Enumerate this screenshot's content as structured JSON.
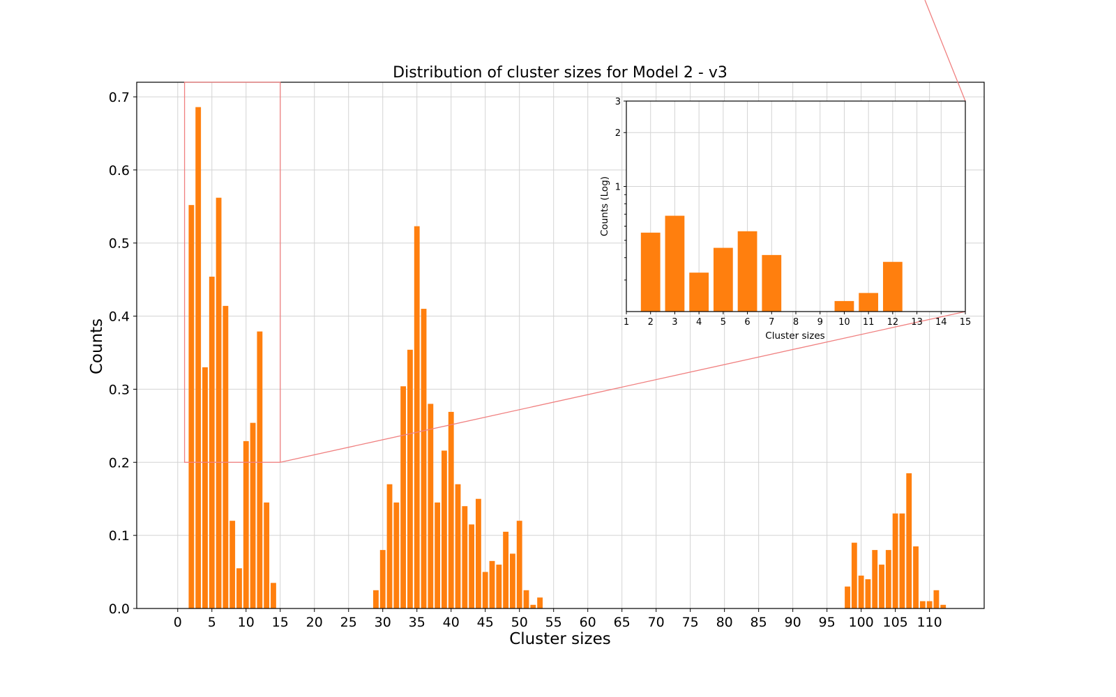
{
  "chart_data": [
    {
      "type": "bar",
      "title": "Distribution of cluster sizes for Model 2 - v3",
      "xlabel": "Cluster sizes",
      "ylabel": "Counts",
      "xlim": [
        -6,
        118
      ],
      "ylim": [
        0,
        0.72
      ],
      "xticks": [
        0,
        5,
        10,
        15,
        20,
        25,
        30,
        35,
        40,
        45,
        50,
        55,
        60,
        65,
        70,
        75,
        80,
        85,
        90,
        95,
        100,
        105,
        110
      ],
      "yticks": [
        0.0,
        0.1,
        0.2,
        0.3,
        0.4,
        0.5,
        0.6,
        0.7
      ],
      "grid": true,
      "color": "#ff7f0e",
      "zoom_box": {
        "x": [
          1,
          15
        ],
        "y": [
          0.2,
          0.72
        ]
      },
      "x": [
        2,
        3,
        4,
        5,
        6,
        7,
        8,
        9,
        10,
        11,
        12,
        13,
        14,
        29,
        30,
        31,
        32,
        33,
        34,
        35,
        36,
        37,
        38,
        39,
        40,
        41,
        42,
        43,
        44,
        45,
        46,
        47,
        48,
        49,
        50,
        51,
        52,
        53,
        98,
        99,
        100,
        101,
        102,
        103,
        104,
        105,
        106,
        107,
        108,
        109,
        110,
        111,
        112
      ],
      "values": [
        0.552,
        0.686,
        0.33,
        0.454,
        0.562,
        0.414,
        0.12,
        0.055,
        0.229,
        0.254,
        0.379,
        0.145,
        0.035,
        0.025,
        0.08,
        0.17,
        0.145,
        0.304,
        0.354,
        0.523,
        0.41,
        0.28,
        0.145,
        0.216,
        0.269,
        0.17,
        0.14,
        0.115,
        0.15,
        0.05,
        0.065,
        0.06,
        0.105,
        0.075,
        0.12,
        0.025,
        0.005,
        0.015,
        0.03,
        0.09,
        0.045,
        0.04,
        0.08,
        0.06,
        0.08,
        0.13,
        0.13,
        0.185,
        0.085,
        0.01,
        0.01,
        0.025,
        0.005
      ]
    },
    {
      "type": "bar",
      "title": "",
      "xlabel": "Cluster sizes",
      "ylabel": "Counts (Log)",
      "yscale": "log",
      "xlim": [
        1,
        15
      ],
      "ylim": [
        0.2,
        3
      ],
      "xticks": [
        1,
        2,
        3,
        4,
        5,
        6,
        7,
        8,
        9,
        10,
        11,
        12,
        13,
        14,
        15
      ],
      "yticks": [
        1,
        2,
        3
      ],
      "grid": true,
      "color": "#ff7f0e",
      "x": [
        2,
        3,
        4,
        5,
        6,
        7,
        10,
        11,
        12
      ],
      "values": [
        0.552,
        0.686,
        0.33,
        0.454,
        0.562,
        0.414,
        0.229,
        0.254,
        0.379
      ]
    }
  ]
}
